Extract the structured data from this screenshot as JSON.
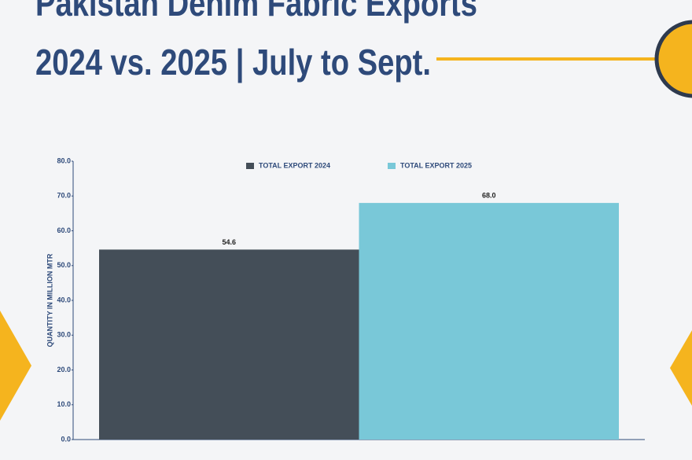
{
  "chart_data": {
    "type": "bar",
    "title": [
      "Pakistan Denim Fabric Exports",
      "2024 vs. 2025 | July to Sept."
    ],
    "y_label": "QUANTITY IN MILLION MTR",
    "categories": [
      null
    ],
    "series": [
      {
        "name": "TOTAL EXPORT 2024",
        "color": "#444e58",
        "values": [
          54.6
        ],
        "value_labels": [
          "54.6"
        ]
      },
      {
        "name": "TOTAL EXPORT 2025",
        "color": "#79c8d8",
        "values": [
          68
        ],
        "value_labels": [
          "68.0"
        ]
      }
    ],
    "ylim": [
      0,
      80
    ],
    "yticks": [
      {
        "value": 0,
        "label": "0.0"
      },
      {
        "value": 10,
        "label": "10.0"
      },
      {
        "value": 20,
        "label": "20.0"
      },
      {
        "value": 30,
        "label": "30.0"
      },
      {
        "value": 40,
        "label": "40.0"
      },
      {
        "value": 50,
        "label": "50.0"
      },
      {
        "value": 60,
        "label": "60.0"
      },
      {
        "value": 70,
        "label": "70.0"
      },
      {
        "value": 80,
        "label": "80.0"
      }
    ],
    "legend": "top"
  }
}
